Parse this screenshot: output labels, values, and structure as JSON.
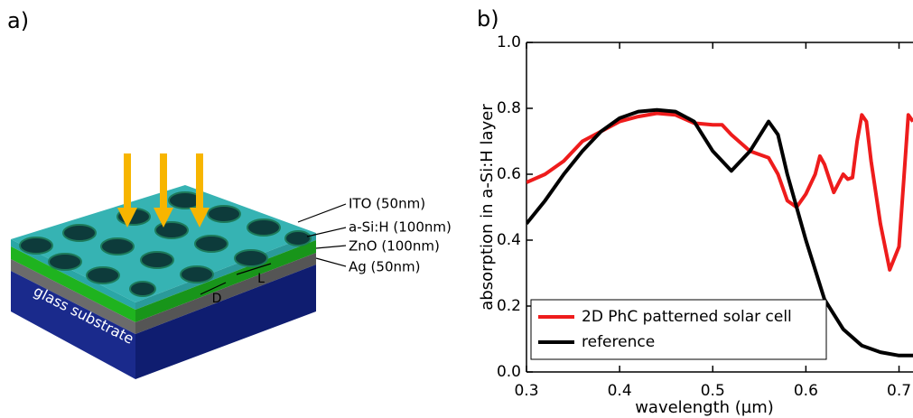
{
  "diagram": {
    "panel_label": "a)",
    "layer_labels": [
      "ITO (50nm)",
      "a-Si:H (100nm)",
      "ZnO (100nm)",
      "Ag (50nm)"
    ],
    "substrate_label": "glass substrate",
    "diameter_label": "D",
    "period_label": "L"
  },
  "chart_data": {
    "type": "line",
    "panel_label": "b)",
    "x_label": "wavelength (µm)",
    "y_label": "absorption in a-Si:H layer",
    "xlim": [
      0.3,
      0.715
    ],
    "ylim": [
      0.0,
      1.0
    ],
    "xticks": [
      0.3,
      0.4,
      0.5,
      0.6,
      0.7
    ],
    "yticks": [
      {
        "value": 0.0,
        "label": "0.0"
      },
      0.2,
      0.4,
      0.6,
      0.8,
      {
        "value": 1.0,
        "label": "1.0"
      }
    ],
    "legend": "lower left",
    "series": [
      {
        "name": "2D PhC patterned solar cell",
        "color": "#ee1c1c",
        "x": [
          0.3,
          0.32,
          0.34,
          0.36,
          0.38,
          0.4,
          0.42,
          0.44,
          0.46,
          0.48,
          0.5,
          0.51,
          0.52,
          0.54,
          0.56,
          0.57,
          0.58,
          0.59,
          0.6,
          0.61,
          0.615,
          0.62,
          0.63,
          0.64,
          0.645,
          0.65,
          0.655,
          0.66,
          0.665,
          0.67,
          0.68,
          0.69,
          0.7,
          0.705,
          0.71,
          0.715
        ],
        "values": [
          0.575,
          0.6,
          0.64,
          0.7,
          0.73,
          0.76,
          0.775,
          0.785,
          0.78,
          0.755,
          0.75,
          0.75,
          0.72,
          0.67,
          0.65,
          0.6,
          0.52,
          0.5,
          0.54,
          0.6,
          0.655,
          0.63,
          0.545,
          0.6,
          0.585,
          0.59,
          0.7,
          0.78,
          0.76,
          0.64,
          0.45,
          0.31,
          0.38,
          0.58,
          0.78,
          0.76
        ]
      },
      {
        "name": "reference",
        "color": "#000000",
        "x": [
          0.3,
          0.32,
          0.34,
          0.36,
          0.38,
          0.4,
          0.42,
          0.44,
          0.46,
          0.48,
          0.5,
          0.52,
          0.54,
          0.56,
          0.57,
          0.58,
          0.6,
          0.62,
          0.64,
          0.66,
          0.68,
          0.7,
          0.715
        ],
        "values": [
          0.45,
          0.52,
          0.6,
          0.67,
          0.73,
          0.77,
          0.79,
          0.795,
          0.79,
          0.76,
          0.67,
          0.61,
          0.67,
          0.76,
          0.72,
          0.6,
          0.4,
          0.22,
          0.13,
          0.08,
          0.06,
          0.05,
          0.05
        ]
      }
    ]
  }
}
